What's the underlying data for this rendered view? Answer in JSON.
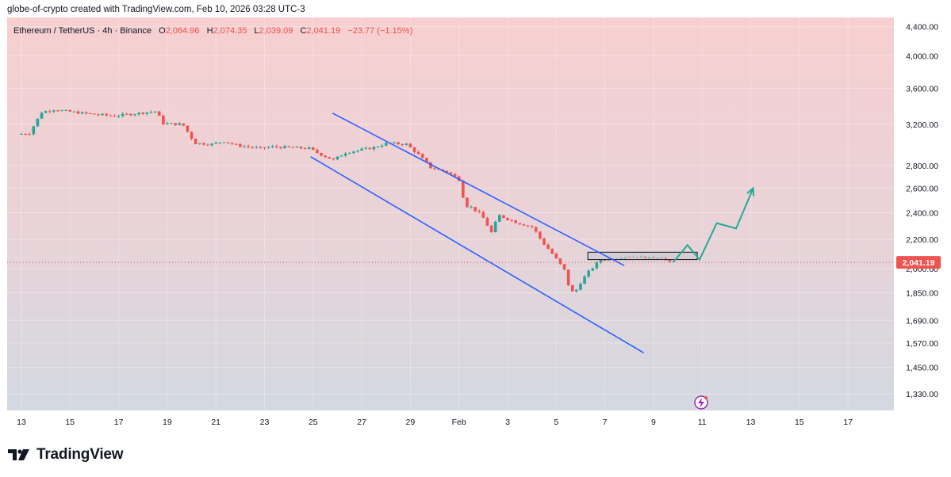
{
  "caption": "globe-of-crypto created with TradingView.com, Feb 10, 2026 03:28 UTC-3",
  "header": {
    "symbol": "Ethereum / TetherUS · 4h · Binance",
    "open_label": "O",
    "open": "2,064.96",
    "high_label": "H",
    "high": "2,074.35",
    "low_label": "L",
    "low": "2,039.09",
    "close_label": "C",
    "close": "2,041.19",
    "change": "−23.77 (−1.15%)"
  },
  "price_tag": "2,041.19",
  "brand": {
    "name": "TradingView",
    "logo_icon": "tradingview-logo-icon"
  },
  "colors": {
    "up": "#26a69a",
    "down": "#ef5350",
    "channel": "#2962ff",
    "projection": "#22ab94",
    "bg_top": "#f6cfd0",
    "bg_bottom": "#d3d8e1"
  },
  "chart_data": {
    "type": "candlestick",
    "symbol": "ETHUSDT",
    "interval": "4h",
    "y_scale": "log",
    "ylim": [
      1260,
      4500
    ],
    "x_ticks": [
      "13",
      "15",
      "17",
      "19",
      "21",
      "23",
      "25",
      "27",
      "29",
      "Feb",
      "3",
      "5",
      "7",
      "9",
      "11",
      "13",
      "15",
      "17"
    ],
    "y_ticks": [
      "4,400.00",
      "4,000.00",
      "3,600.00",
      "3,200.00",
      "2,800.00",
      "2,600.00",
      "2,400.00",
      "2,200.00",
      "2,000.00",
      "1,850.00",
      "1,690.00",
      "1,570.00",
      "1,450.00",
      "1,330.00"
    ],
    "last_price": 2041.19,
    "price_path": [
      [
        13,
        3100
      ],
      [
        13.5,
        3110
      ],
      [
        14,
        3330
      ],
      [
        14.5,
        3360
      ],
      [
        15,
        3340
      ],
      [
        16,
        3310
      ],
      [
        17,
        3290
      ],
      [
        18,
        3320
      ],
      [
        18.7,
        3340
      ],
      [
        19,
        3210
      ],
      [
        19.8,
        3200
      ],
      [
        20.3,
        3010
      ],
      [
        21,
        3000
      ],
      [
        21.5,
        3030
      ],
      [
        22,
        2990
      ],
      [
        23,
        2960
      ],
      [
        23.5,
        2975
      ],
      [
        24,
        2970
      ],
      [
        25,
        2960
      ],
      [
        25.4,
        2910
      ],
      [
        26,
        2850
      ],
      [
        26.5,
        2920
      ],
      [
        27,
        2940
      ],
      [
        27.7,
        2970
      ],
      [
        28.2,
        3010
      ],
      [
        29,
        3000
      ],
      [
        29.5,
        2900
      ],
      [
        30,
        2780
      ],
      [
        30.7,
        2740
      ],
      [
        31.2,
        2670
      ],
      [
        31.4,
        2460
      ],
      [
        31.7,
        2440
      ],
      [
        32.1,
        2380
      ],
      [
        32.5,
        2250
      ],
      [
        32.8,
        2380
      ],
      [
        33.2,
        2350
      ],
      [
        33.6,
        2320
      ],
      [
        34.2,
        2290
      ],
      [
        34.6,
        2180
      ],
      [
        35,
        2100
      ],
      [
        35.5,
        1990
      ],
      [
        35.7,
        1880
      ],
      [
        35.9,
        1840
      ],
      [
        36.2,
        1920
      ],
      [
        36.5,
        1980
      ],
      [
        37,
        2060
      ],
      [
        37.6,
        2070
      ],
      [
        38,
        2080
      ],
      [
        38.5,
        2080
      ],
      [
        39,
        2070
      ],
      [
        39.5,
        2080
      ],
      [
        39.8,
        2041
      ]
    ],
    "annotations": {
      "channel_upper": [
        [
          25.8,
          3320
        ],
        [
          37.8,
          2020
        ]
      ],
      "channel_lower": [
        [
          24.9,
          2880
        ],
        [
          38.6,
          1520
        ]
      ],
      "range_box": {
        "x": [
          36.3,
          40.8
        ],
        "y": [
          2060,
          2110
        ]
      },
      "projection": [
        [
          39.8,
          2040
        ],
        [
          40.4,
          2160
        ],
        [
          40.9,
          2060
        ],
        [
          41.6,
          2320
        ],
        [
          42.4,
          2280
        ],
        [
          43.1,
          2600
        ]
      ]
    }
  }
}
